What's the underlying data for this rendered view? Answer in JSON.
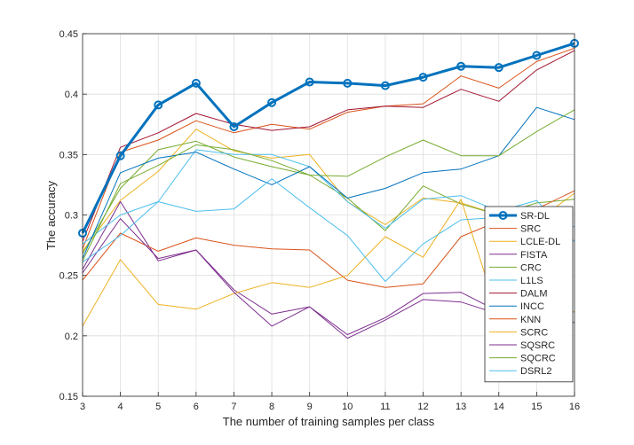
{
  "chart_data": {
    "type": "line",
    "title": "",
    "xlabel": "The number of training samples per class",
    "ylabel": "The accuracy",
    "xlim": [
      3,
      16
    ],
    "ylim": [
      0.15,
      0.45
    ],
    "x": [
      3,
      4,
      5,
      6,
      7,
      8,
      9,
      10,
      11,
      12,
      13,
      14,
      15,
      16
    ],
    "xticks": [
      "3",
      "4",
      "5",
      "6",
      "7",
      "8",
      "9",
      "10",
      "11",
      "12",
      "13",
      "14",
      "15",
      "16"
    ],
    "yticks": [
      "0.15",
      "0.2",
      "0.25",
      "0.3",
      "0.35",
      "0.4",
      "0.45"
    ],
    "grid": true,
    "legend_position": "right",
    "series": [
      {
        "name": "SR-DL",
        "color": "#0072BD",
        "bold": true,
        "marker": "o",
        "values": [
          0.285,
          0.349,
          0.391,
          0.409,
          0.373,
          0.393,
          0.41,
          0.409,
          0.407,
          0.414,
          0.423,
          0.422,
          0.432,
          0.442
        ]
      },
      {
        "name": "SRC",
        "color": "#D95319",
        "values": [
          0.272,
          0.352,
          0.362,
          0.378,
          0.368,
          0.375,
          0.371,
          0.385,
          0.39,
          0.392,
          0.415,
          0.405,
          0.427,
          0.438
        ]
      },
      {
        "name": "LCLE-DL",
        "color": "#EDB120",
        "values": [
          0.27,
          0.312,
          0.336,
          0.371,
          0.353,
          0.347,
          0.35,
          0.311,
          0.292,
          0.314,
          0.31,
          0.3,
          0.295,
          0.318
        ]
      },
      {
        "name": "FISTA",
        "color": "#7E2F8E",
        "values": [
          0.255,
          0.311,
          0.262,
          0.271,
          0.238,
          0.218,
          0.224,
          0.201,
          0.215,
          0.235,
          0.236,
          0.22,
          0.215,
          0.22
        ]
      },
      {
        "name": "CRC",
        "color": "#77AC30",
        "values": [
          0.268,
          0.322,
          0.354,
          0.361,
          0.348,
          0.34,
          0.333,
          0.314,
          0.287,
          0.324,
          0.309,
          0.3,
          0.31,
          0.313
        ]
      },
      {
        "name": "L1LS",
        "color": "#4DBEEE",
        "values": [
          0.276,
          0.3,
          0.311,
          0.354,
          0.35,
          0.35,
          0.34,
          0.311,
          0.289,
          0.313,
          0.316,
          0.303,
          0.312,
          0.278
        ]
      },
      {
        "name": "DALM",
        "color": "#A2142F",
        "values": [
          0.278,
          0.356,
          0.368,
          0.384,
          0.375,
          0.37,
          0.373,
          0.387,
          0.39,
          0.389,
          0.404,
          0.394,
          0.42,
          0.436
        ]
      },
      {
        "name": "INCC",
        "color": "#0072BD",
        "values": [
          0.264,
          0.335,
          0.347,
          0.352,
          0.338,
          0.325,
          0.34,
          0.314,
          0.322,
          0.335,
          0.338,
          0.349,
          0.389,
          0.379
        ]
      },
      {
        "name": "KNN",
        "color": "#D95319",
        "values": [
          0.246,
          0.285,
          0.27,
          0.281,
          0.275,
          0.272,
          0.271,
          0.246,
          0.24,
          0.243,
          0.282,
          0.295,
          0.305,
          0.32
        ]
      },
      {
        "name": "SCRC",
        "color": "#EDB120",
        "values": [
          0.208,
          0.263,
          0.226,
          0.222,
          0.235,
          0.244,
          0.24,
          0.25,
          0.282,
          0.265,
          0.313,
          0.215,
          0.215,
          0.22
        ]
      },
      {
        "name": "SQSRC",
        "color": "#7E2F8E",
        "values": [
          0.252,
          0.297,
          0.264,
          0.271,
          0.236,
          0.208,
          0.224,
          0.198,
          0.213,
          0.23,
          0.228,
          0.218,
          0.212,
          0.211
        ]
      },
      {
        "name": "SQCRC",
        "color": "#77AC30",
        "values": [
          0.262,
          0.326,
          0.341,
          0.358,
          0.354,
          0.345,
          0.333,
          0.332,
          0.348,
          0.362,
          0.349,
          0.349,
          0.369,
          0.387
        ]
      },
      {
        "name": "DSRL2",
        "color": "#4DBEEE",
        "values": [
          0.261,
          0.283,
          0.311,
          0.303,
          0.305,
          0.33,
          0.306,
          0.283,
          0.245,
          0.276,
          0.296,
          0.298,
          0.303,
          0.29
        ]
      }
    ]
  }
}
